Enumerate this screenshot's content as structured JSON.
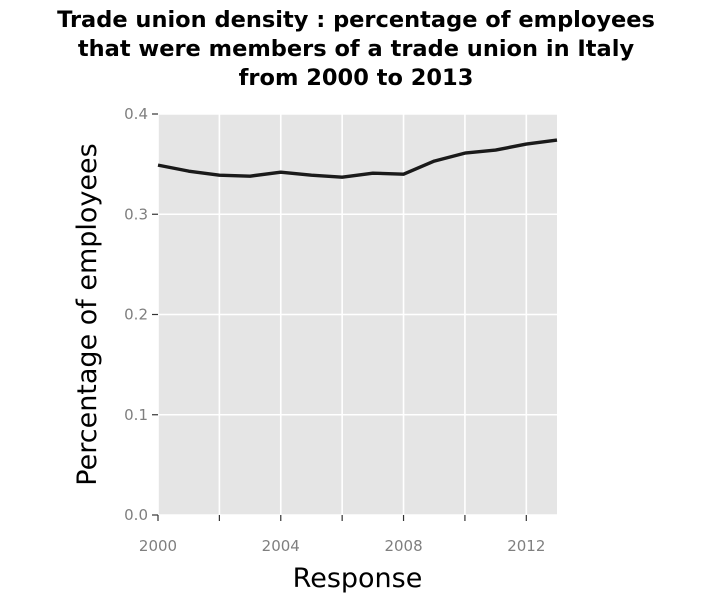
{
  "chart_data": {
    "type": "line",
    "title_lines": [
      "Trade union density : percentage of employees",
      "that were members of a trade union in Italy",
      "from 2000 to 2013"
    ],
    "xlabel": "Response",
    "ylabel": "Percentage of employees",
    "xlim": [
      2000,
      2013
    ],
    "ylim": [
      0,
      0.4
    ],
    "x_ticks": [
      2000,
      2004,
      2008,
      2012
    ],
    "x_minor_ticks": [
      2002,
      2006,
      2010
    ],
    "y_ticks": [
      0.0,
      0.1,
      0.2,
      0.3,
      0.4
    ],
    "y_tick_labels": [
      "0.0",
      "0.1",
      "0.2",
      "0.3",
      "0.4"
    ],
    "grid": true,
    "background": "#e5e5e5",
    "line_color": "#1a1a1a",
    "series": [
      {
        "x": [
          2000,
          2001,
          2002,
          2003,
          2004,
          2005,
          2006,
          2007,
          2008,
          2009,
          2010,
          2011,
          2012,
          2013
        ],
        "values": [
          0.349,
          0.343,
          0.339,
          0.338,
          0.342,
          0.339,
          0.337,
          0.341,
          0.34,
          0.353,
          0.361,
          0.364,
          0.37,
          0.374
        ]
      }
    ]
  }
}
